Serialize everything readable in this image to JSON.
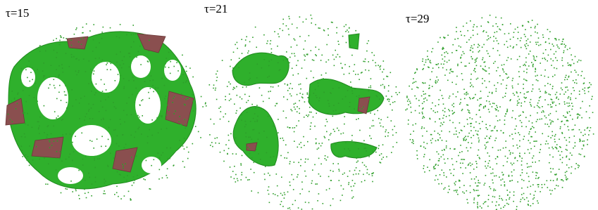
{
  "panels": [
    {
      "label": "τ=15"
    },
    {
      "label": "τ=21"
    },
    {
      "label": "τ=29"
    }
  ]
}
